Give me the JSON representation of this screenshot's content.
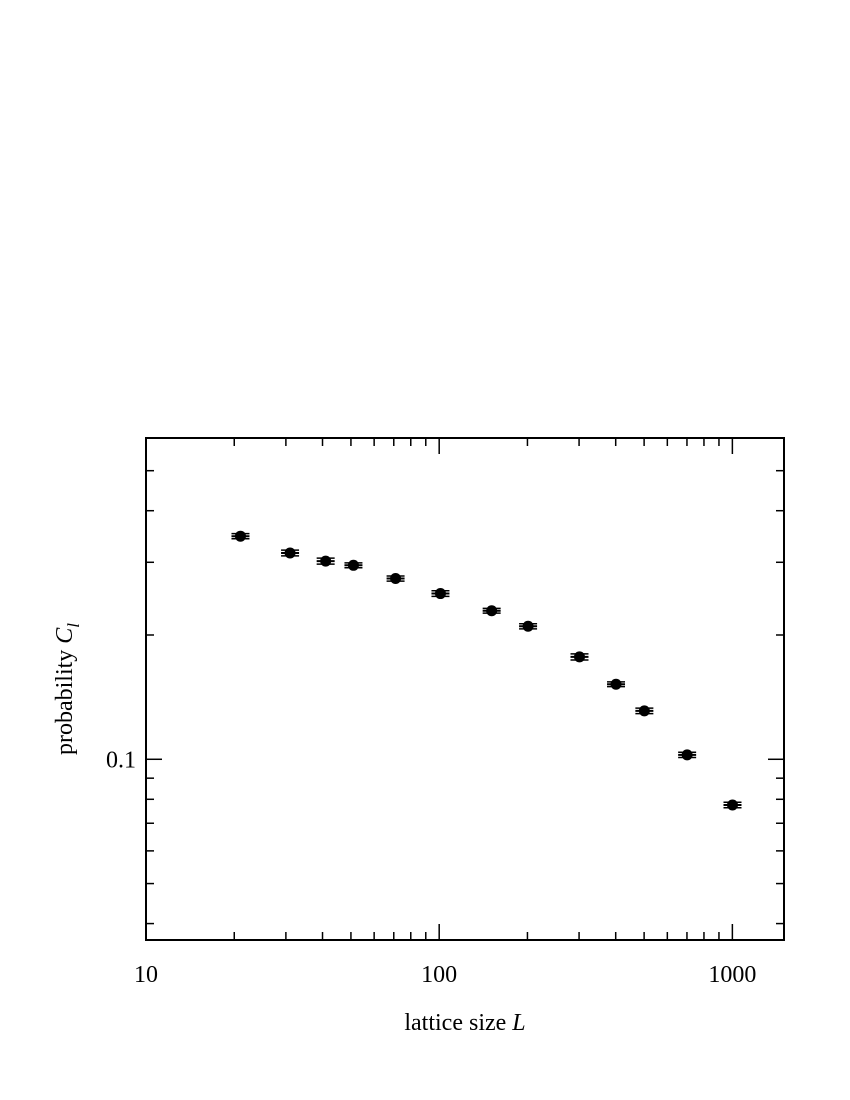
{
  "chart_data": {
    "type": "scatter",
    "title": "",
    "xlabel": "lattice size",
    "xlabel_var": "L",
    "ylabel": "probability",
    "ylabel_var": "C",
    "ylabel_sub": "l",
    "x_scale": "log",
    "y_scale": "log",
    "xlim": [
      10,
      1500
    ],
    "ylim": [
      0.0365,
      0.6
    ],
    "x_ticks": [
      {
        "value": 10,
        "label": "10"
      },
      {
        "value": 100,
        "label": "100"
      },
      {
        "value": 1000,
        "label": "1000"
      }
    ],
    "y_ticks": [
      {
        "value": 0.1,
        "label": "0.1"
      }
    ],
    "grid": false,
    "legend": "none",
    "marker_color": "#000000",
    "series": [
      {
        "points": [
          {
            "x": 21,
            "y": 0.347,
            "err": 0.005
          },
          {
            "x": 31,
            "y": 0.316,
            "err": 0.005
          },
          {
            "x": 41,
            "y": 0.302,
            "err": 0.005
          },
          {
            "x": 51,
            "y": 0.295,
            "err": 0.004
          },
          {
            "x": 71,
            "y": 0.274,
            "err": 0.004
          },
          {
            "x": 101,
            "y": 0.252,
            "err": 0.004
          },
          {
            "x": 151,
            "y": 0.229,
            "err": 0.003
          },
          {
            "x": 201,
            "y": 0.21,
            "err": 0.003
          },
          {
            "x": 301,
            "y": 0.177,
            "err": 0.003
          },
          {
            "x": 401,
            "y": 0.152,
            "err": 0.002
          },
          {
            "x": 501,
            "y": 0.131,
            "err": 0.002
          },
          {
            "x": 701,
            "y": 0.1025,
            "err": 0.0015
          },
          {
            "x": 1001,
            "y": 0.0775,
            "err": 0.0012
          }
        ]
      }
    ]
  }
}
